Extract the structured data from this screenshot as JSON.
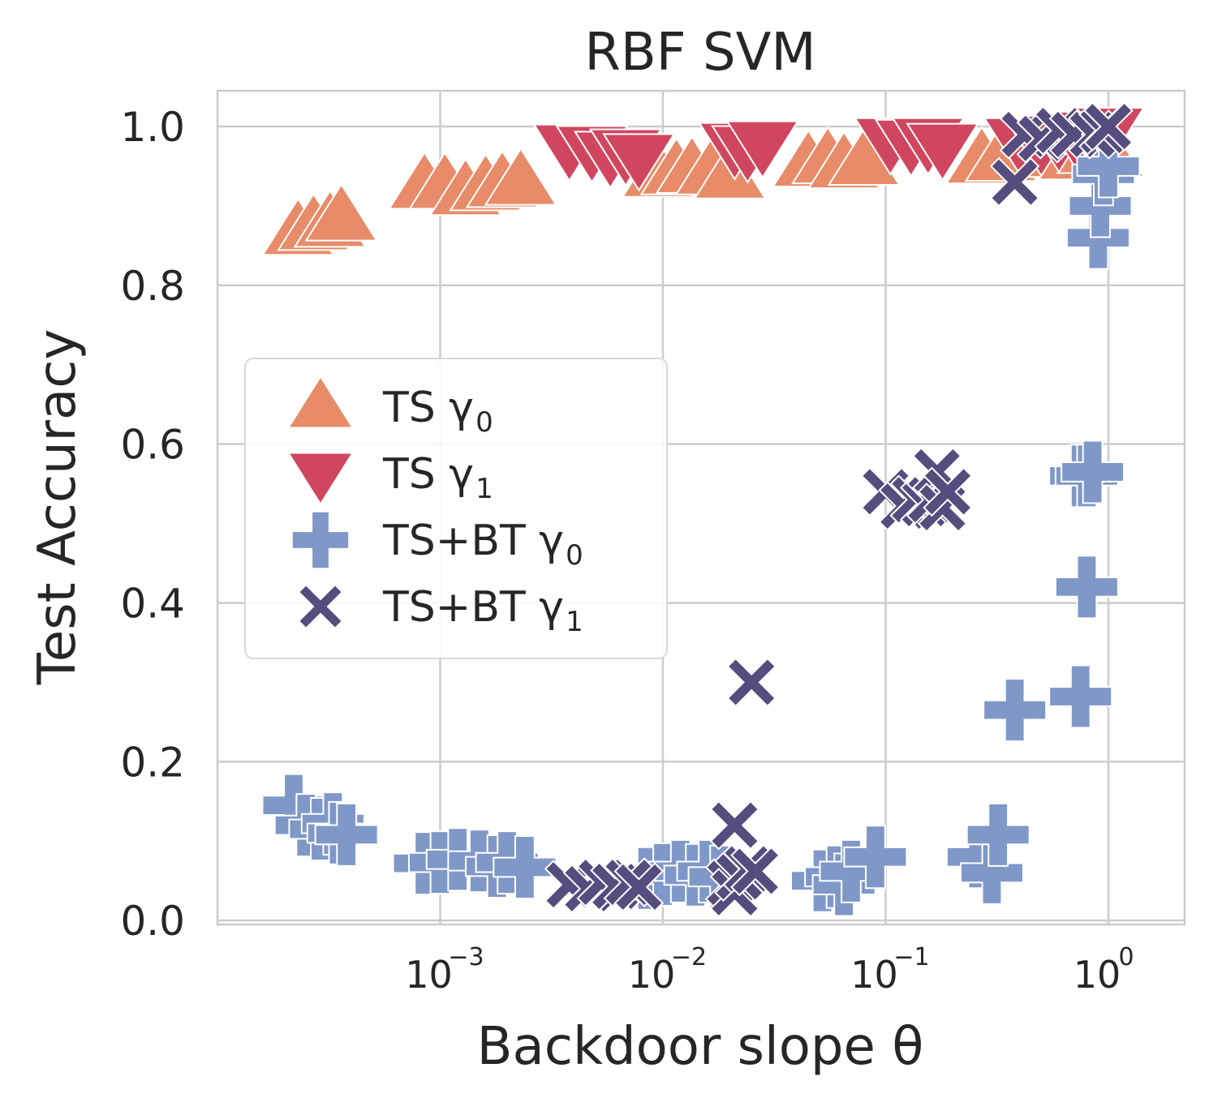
{
  "chart_data": {
    "type": "scatter",
    "title": "RBF SVM",
    "xlabel": "Backdoor slope θ",
    "ylabel": "Test Accuracy",
    "x_scale": "log",
    "xlim": [
      0.0001,
      2.2
    ],
    "ylim": [
      -0.005,
      1.045
    ],
    "grid": true,
    "legend_position": "center-left",
    "x_ticks": [
      {
        "value": 0.001,
        "base": "10",
        "exp": "−3"
      },
      {
        "value": 0.01,
        "base": "10",
        "exp": "−2"
      },
      {
        "value": 0.1,
        "base": "10",
        "exp": "−1"
      },
      {
        "value": 1,
        "base": "10",
        "exp": "0"
      }
    ],
    "y_ticks": [
      {
        "value": 0.0,
        "label": "0.0"
      },
      {
        "value": 0.2,
        "label": "0.2"
      },
      {
        "value": 0.4,
        "label": "0.4"
      },
      {
        "value": 0.6,
        "label": "0.6"
      },
      {
        "value": 0.8,
        "label": "0.8"
      },
      {
        "value": 1.0,
        "label": "1.0"
      }
    ],
    "series": [
      {
        "name": "TS γ",
        "name_base": "TS γ",
        "name_sub": "0",
        "marker": "triangle-up",
        "color": "#E88B68",
        "points": [
          [
            0.00023,
            0.867
          ],
          [
            0.00027,
            0.873
          ],
          [
            0.00032,
            0.877
          ],
          [
            0.00036,
            0.885
          ],
          [
            0.00085,
            0.925
          ],
          [
            0.00105,
            0.925
          ],
          [
            0.0013,
            0.917
          ],
          [
            0.0016,
            0.923
          ],
          [
            0.0019,
            0.927
          ],
          [
            0.0023,
            0.93
          ],
          [
            0.0095,
            0.94
          ],
          [
            0.0115,
            0.943
          ],
          [
            0.0135,
            0.945
          ],
          [
            0.0165,
            0.943
          ],
          [
            0.02,
            0.938
          ],
          [
            0.045,
            0.953
          ],
          [
            0.055,
            0.957
          ],
          [
            0.065,
            0.951
          ],
          [
            0.08,
            0.955
          ],
          [
            0.27,
            0.957
          ],
          [
            0.33,
            0.96
          ],
          [
            0.58,
            0.965
          ],
          [
            0.7,
            0.962
          ],
          [
            0.85,
            0.97
          ],
          [
            1.0,
            0.965
          ]
        ]
      },
      {
        "name": "TS γ",
        "name_base": "TS γ",
        "name_sub": "1",
        "marker": "triangle-down",
        "color": "#D1465F",
        "points": [
          [
            0.0038,
            0.974
          ],
          [
            0.0048,
            0.972
          ],
          [
            0.0058,
            0.965
          ],
          [
            0.0068,
            0.968
          ],
          [
            0.0078,
            0.962
          ],
          [
            0.021,
            0.976
          ],
          [
            0.024,
            0.972
          ],
          [
            0.028,
            0.978
          ],
          [
            0.105,
            0.982
          ],
          [
            0.13,
            0.98
          ],
          [
            0.155,
            0.982
          ],
          [
            0.18,
            0.975
          ],
          [
            0.4,
            0.982
          ],
          [
            0.5,
            0.98
          ],
          [
            0.6,
            0.985
          ],
          [
            0.72,
            0.988
          ],
          [
            0.85,
            0.99
          ],
          [
            1.0,
            0.995
          ]
        ]
      },
      {
        "name": "TS+BT γ",
        "name_base": "TS+BT γ",
        "name_sub": "0",
        "marker": "plus",
        "color": "#7F98C8",
        "points": [
          [
            0.00022,
            0.145
          ],
          [
            0.00025,
            0.12
          ],
          [
            0.00029,
            0.115
          ],
          [
            0.00033,
            0.122
          ],
          [
            0.00035,
            0.11
          ],
          [
            0.00038,
            0.108
          ],
          [
            0.00085,
            0.072
          ],
          [
            0.001,
            0.073
          ],
          [
            0.0012,
            0.077
          ],
          [
            0.0015,
            0.075
          ],
          [
            0.0018,
            0.068
          ],
          [
            0.002,
            0.073
          ],
          [
            0.0024,
            0.067
          ],
          [
            0.0085,
            0.053
          ],
          [
            0.01,
            0.058
          ],
          [
            0.012,
            0.062
          ],
          [
            0.014,
            0.057
          ],
          [
            0.016,
            0.062
          ],
          [
            0.018,
            0.055
          ],
          [
            0.052,
            0.05
          ],
          [
            0.06,
            0.055
          ],
          [
            0.065,
            0.045
          ],
          [
            0.07,
            0.062
          ],
          [
            0.09,
            0.08
          ],
          [
            0.26,
            0.08
          ],
          [
            0.3,
            0.06
          ],
          [
            0.32,
            0.108
          ],
          [
            0.38,
            0.265
          ],
          [
            0.75,
            0.282
          ],
          [
            0.8,
            0.42
          ],
          [
            0.75,
            0.56
          ],
          [
            0.8,
            0.56
          ],
          [
            0.85,
            0.565
          ],
          [
            0.9,
            0.86
          ],
          [
            0.92,
            0.9
          ],
          [
            0.95,
            0.94
          ],
          [
            1.0,
            0.95
          ]
        ]
      },
      {
        "name": "TS+BT γ",
        "name_base": "TS+BT γ",
        "name_sub": "1",
        "marker": "x",
        "color": "#564C7E",
        "points": [
          [
            0.0038,
            0.045
          ],
          [
            0.0046,
            0.04
          ],
          [
            0.0053,
            0.048
          ],
          [
            0.0061,
            0.043
          ],
          [
            0.007,
            0.048
          ],
          [
            0.0078,
            0.042
          ],
          [
            0.02,
            0.047
          ],
          [
            0.021,
            0.035
          ],
          [
            0.022,
            0.055
          ],
          [
            0.024,
            0.065
          ],
          [
            0.026,
            0.062
          ],
          [
            0.021,
            0.12
          ],
          [
            0.025,
            0.3
          ],
          [
            0.1,
            0.54
          ],
          [
            0.12,
            0.522
          ],
          [
            0.135,
            0.53
          ],
          [
            0.15,
            0.525
          ],
          [
            0.16,
            0.53
          ],
          [
            0.17,
            0.565
          ],
          [
            0.18,
            0.52
          ],
          [
            0.19,
            0.54
          ],
          [
            0.38,
            0.93
          ],
          [
            0.42,
            0.99
          ],
          [
            0.5,
            0.985
          ],
          [
            0.6,
            0.995
          ],
          [
            0.7,
            0.99
          ],
          [
            0.85,
            0.99
          ],
          [
            0.95,
            0.995
          ],
          [
            1.0,
            1.0
          ]
        ]
      }
    ]
  }
}
